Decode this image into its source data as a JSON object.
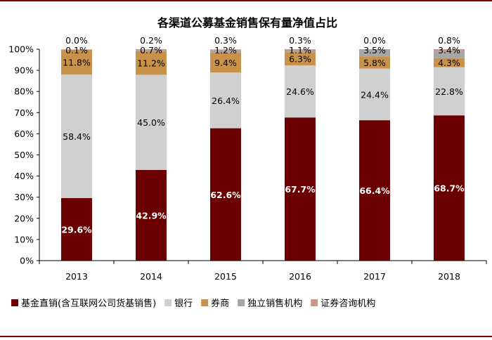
{
  "chart_data": {
    "type": "bar",
    "stacked": true,
    "title": "各渠道公募基金销售保有量净值占比",
    "categories": [
      "2013",
      "2014",
      "2015",
      "2016",
      "2017",
      "2018"
    ],
    "ylim": [
      0,
      100
    ],
    "yticks": [
      "0%",
      "10%",
      "20%",
      "30%",
      "40%",
      "50%",
      "60%",
      "70%",
      "80%",
      "90%",
      "100%"
    ],
    "series": [
      {
        "name": "基金直销(含互联网公司货基销售)",
        "color": "#6B0000",
        "labelColor": "#ffffff",
        "labelBold": true,
        "values": [
          29.6,
          42.9,
          62.6,
          67.7,
          66.4,
          68.7
        ],
        "labels": [
          "29.6%",
          "42.9%",
          "62.6%",
          "67.7%",
          "66.4%",
          "68.7%"
        ]
      },
      {
        "name": "银行",
        "color": "#D0D0D0",
        "labelColor": "#000000",
        "labelBold": false,
        "values": [
          58.4,
          45.0,
          26.4,
          24.6,
          24.4,
          22.8
        ],
        "labels": [
          "58.4%",
          "45.0%",
          "26.4%",
          "24.6%",
          "24.4%",
          "22.8%"
        ]
      },
      {
        "name": "券商",
        "color": "#C8924A",
        "labelColor": "#000000",
        "labelBold": false,
        "values": [
          11.8,
          11.2,
          9.4,
          6.3,
          5.8,
          4.3
        ],
        "labels": [
          "11.8%",
          "11.2%",
          "9.4%",
          "6.3%",
          "5.8%",
          "4.3%"
        ]
      },
      {
        "name": "独立销售机构",
        "color": "#A6A6A6",
        "labelColor": "#000000",
        "labelBold": false,
        "values": [
          0.1,
          0.7,
          1.2,
          1.1,
          3.5,
          3.4
        ],
        "labels": [
          "0.1%",
          "0.7%",
          "1.2%",
          "1.1%",
          "3.5%",
          "3.4%"
        ]
      },
      {
        "name": "证券咨询机构",
        "color": "#C9968C",
        "labelColor": "#000000",
        "labelBold": false,
        "values": [
          0.0,
          0.2,
          0.3,
          0.3,
          0.0,
          0.8
        ],
        "labels": [
          "0.0%",
          "0.2%",
          "0.3%",
          "0.3%",
          "0.0%",
          "0.8%"
        ]
      }
    ],
    "legend_position": "bottom",
    "frame_color": "#7B0000"
  }
}
